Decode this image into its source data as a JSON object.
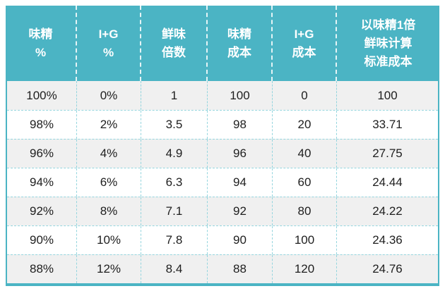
{
  "colors": {
    "accent": "#4bb4c4",
    "dashed_grid": "#94d5de",
    "header_text": "#ffffff",
    "body_text": "#1e1e1e",
    "row_alt_bg": "#f0f0f0",
    "row_bg": "#ffffff"
  },
  "table": {
    "header_display": [
      {
        "lines": [
          "味精",
          "%"
        ]
      },
      {
        "lines": [
          "I+G",
          "%"
        ]
      },
      {
        "lines": [
          "鲜味",
          "倍数"
        ]
      },
      {
        "lines": [
          "味精",
          "成本"
        ]
      },
      {
        "lines": [
          "I+G",
          "成本"
        ]
      },
      {
        "lines": [
          "以味精1倍",
          "鲜味计算",
          "标准成本"
        ]
      }
    ]
  },
  "chart_data": {
    "type": "table",
    "columns": [
      "味精 %",
      "I+G %",
      "鲜味倍数",
      "味精成本",
      "I+G成本",
      "以味精1倍鲜味计算标准成本"
    ],
    "rows": [
      [
        "100%",
        "0%",
        "1",
        "100",
        "0",
        "100"
      ],
      [
        "98%",
        "2%",
        "3.5",
        "98",
        "20",
        "33.71"
      ],
      [
        "96%",
        "4%",
        "4.9",
        "96",
        "40",
        "27.75"
      ],
      [
        "94%",
        "6%",
        "6.3",
        "94",
        "60",
        "24.44"
      ],
      [
        "92%",
        "8%",
        "7.1",
        "92",
        "80",
        "24.22"
      ],
      [
        "90%",
        "10%",
        "7.8",
        "90",
        "100",
        "24.36"
      ],
      [
        "88%",
        "12%",
        "8.4",
        "88",
        "120",
        "24.76"
      ]
    ]
  }
}
